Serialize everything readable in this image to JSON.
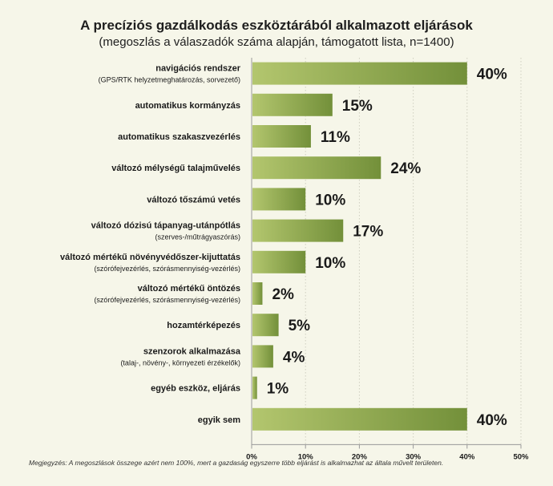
{
  "chart_data": {
    "type": "bar",
    "orientation": "horizontal",
    "title": "A precíziós gazdálkodás eszköztárából alkalmazott eljárások",
    "subtitle": "(megoszlás a válaszadók száma alapján, támogatott lista, n=1400)",
    "categories": [
      {
        "label": "navigációs rendszer",
        "sublabel": "(GPS/RTK helyzetmeghatározás, sorvezető)"
      },
      {
        "label": "automatikus kormányzás",
        "sublabel": ""
      },
      {
        "label": "automatikus szakaszvezérlés",
        "sublabel": ""
      },
      {
        "label": "változó mélységű talajművelés",
        "sublabel": ""
      },
      {
        "label": "változó tőszámú vetés",
        "sublabel": ""
      },
      {
        "label": "változó dózisú tápanyag-utánpótlás",
        "sublabel": "(szerves-/műtrágyaszórás)"
      },
      {
        "label": "változó mértékű növényvédőszer-kijuttatás",
        "sublabel": "(szórófejvezérlés, szórásmennyiség-vezérlés)"
      },
      {
        "label": "változó mértékű öntözés",
        "sublabel": "(szórófejvezérlés, szórásmennyiség-vezérlés)"
      },
      {
        "label": "hozamtérképezés",
        "sublabel": ""
      },
      {
        "label": "szenzorok alkalmazása",
        "sublabel": "(talaj-, növény-, környezeti érzékelők)"
      },
      {
        "label": "egyéb eszköz, eljárás",
        "sublabel": ""
      },
      {
        "label": "egyik sem",
        "sublabel": ""
      }
    ],
    "values": [
      40,
      15,
      11,
      24,
      10,
      17,
      10,
      2,
      5,
      4,
      1,
      40
    ],
    "data_labels": [
      "40%",
      "15%",
      "11%",
      "24%",
      "10%",
      "17%",
      "10%",
      "2%",
      "5%",
      "4%",
      "1%",
      "40%"
    ],
    "xlim": [
      0,
      50
    ],
    "x_ticks": [
      0,
      10,
      20,
      30,
      40,
      50
    ],
    "x_tick_labels": [
      "0%",
      "10%",
      "20%",
      "30%",
      "40%",
      "50%"
    ],
    "grid": "vertical dotted",
    "colors": {
      "bar_start": "#b3c66e",
      "bar_end": "#73903a",
      "background": "#f6f6e9"
    }
  },
  "footnote": "Megjegyzés: A megoszlások összege azért nem 100%, mert a gazdaság egyszerre több eljárást is alkalmazhat az általa művelt területen."
}
